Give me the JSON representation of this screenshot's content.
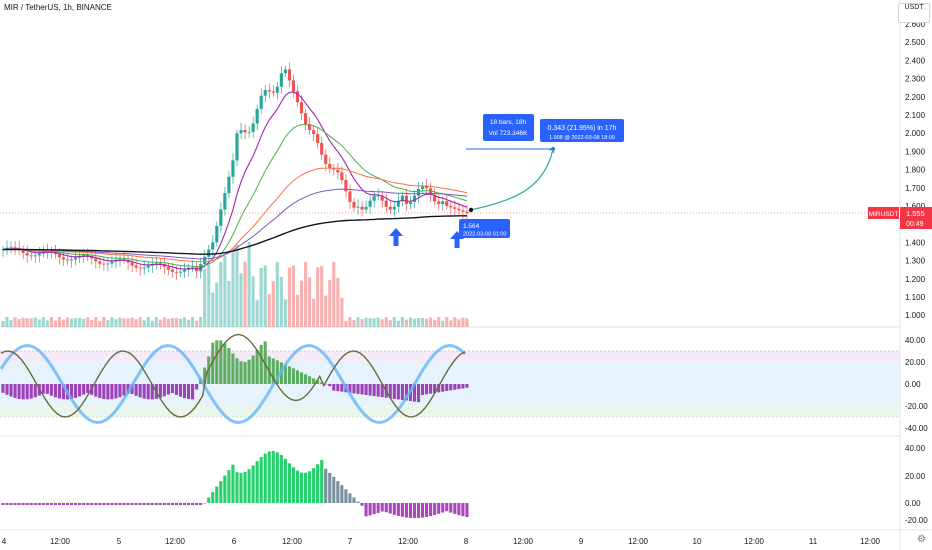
{
  "header": {
    "symbol_line": "MIR / TetherUS, 1h, BINANCE",
    "unit_button": "USDT"
  },
  "price_axis": {
    "labels": [
      "2.600",
      "2.500",
      "2.400",
      "2.300",
      "2.200",
      "2.100",
      "2.000",
      "1.900",
      "1.800",
      "1.700",
      "1.600",
      "1.500",
      "1.400",
      "1.300",
      "1.200",
      "1.100",
      "1.000"
    ]
  },
  "osc1_axis": {
    "labels": [
      "40.00",
      "20.00",
      "0.00",
      "-20.00",
      "-40.00"
    ]
  },
  "osc2_axis": {
    "labels": [
      "40.00",
      "20.00",
      "0.00",
      "-20.00"
    ]
  },
  "time_axis": {
    "labels": [
      "4",
      "12:00",
      "5",
      "12:00",
      "6",
      "12:00",
      "7",
      "12:00",
      "8",
      "12:00",
      "9",
      "12:00",
      "10",
      "12:00",
      "11",
      "12:00"
    ]
  },
  "symbol_tag": {
    "name": "MIRUSDT",
    "price": "1.555",
    "countdown": "00:49"
  },
  "measure_left": {
    "line1": "18 bars, 18h",
    "line2": "Vol 723.346K"
  },
  "measure_right": {
    "line1": "0.343 (21.95%) in 17h",
    "line2": "1.908 @ 2022-03-08 18:00"
  },
  "low_label": {
    "line1": "1.564",
    "line2": "2022-03-08 01:00"
  },
  "colors": {
    "up": "#26a69a",
    "down": "#ef5350",
    "tag": "#f23645",
    "annotation": "#2962ff",
    "arrow": "#2962ff"
  },
  "chart_data": {
    "type": "candlestick",
    "title": "MIR / TetherUS, 1h, BINANCE",
    "ylim": [
      0.93,
      2.66
    ],
    "last_price": 1.555,
    "projection": {
      "from": 1.565,
      "to": 1.908,
      "change": 0.343,
      "percent": 21.95,
      "time": "2022-03-08 18:00"
    },
    "low_marker": {
      "price": 1.564,
      "time": "2022-03-08 01:00"
    },
    "oscillator_1_range": [
      -40,
      40
    ],
    "oscillator_2_range": [
      -20,
      40
    ]
  }
}
